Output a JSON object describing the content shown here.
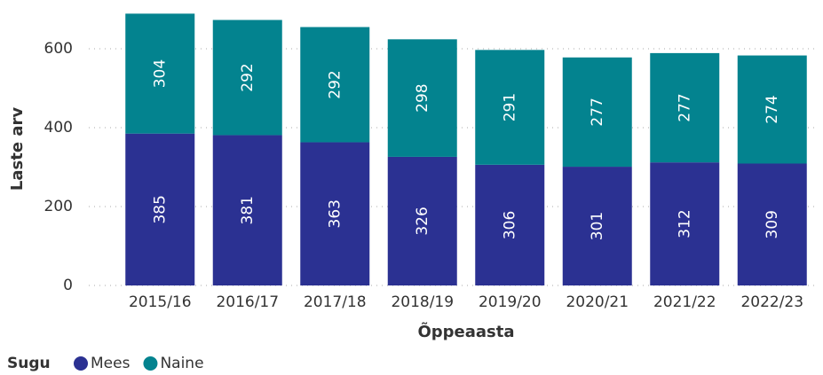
{
  "chart_data": {
    "type": "stacked_bar",
    "y_label": "Laste arv",
    "x_label": "Õppeaasta",
    "legend_title": "Sugu",
    "categories": [
      "2015/16",
      "2016/17",
      "2017/18",
      "2018/19",
      "2019/20",
      "2020/21",
      "2021/22",
      "2022/23"
    ],
    "series": [
      {
        "name": "Mees",
        "color": "#2b3192",
        "values": [
          385,
          381,
          363,
          326,
          306,
          301,
          312,
          309
        ]
      },
      {
        "name": "Naine",
        "color": "#03838f",
        "values": [
          304,
          292,
          292,
          298,
          291,
          277,
          277,
          274
        ]
      }
    ],
    "ylim": [
      0,
      700
    ],
    "yticks": [
      0,
      200,
      400,
      600
    ],
    "grid": true,
    "legend": "bottom-left"
  }
}
